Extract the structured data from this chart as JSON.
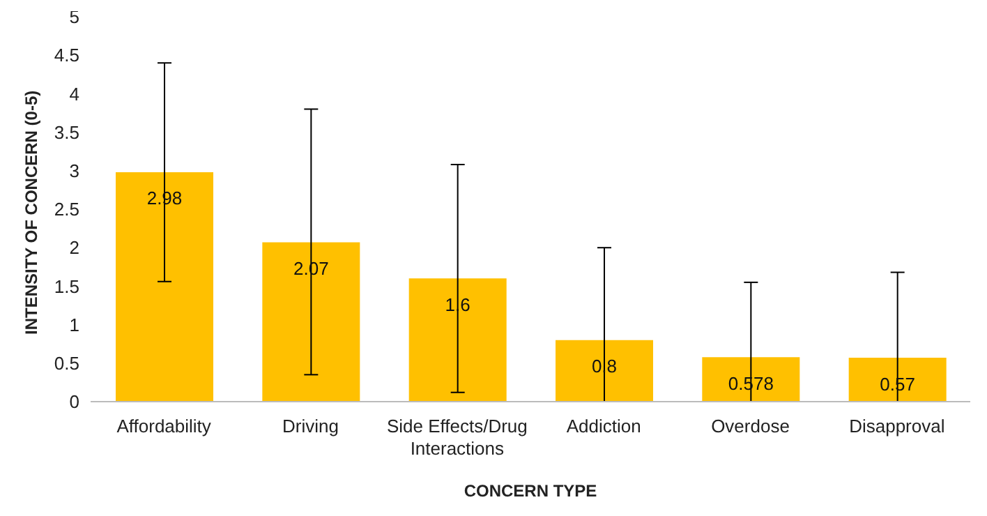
{
  "chart_data": {
    "type": "bar",
    "xlabel": "CONCERN TYPE",
    "ylabel": "INTENSITY OF CONCERN (0-5)",
    "categories": [
      "Affordability",
      "Driving",
      "Side Effects/Drug Interactions",
      "Addiction",
      "Overdose",
      "Disapproval"
    ],
    "values": [
      2.98,
      2.07,
      1.6,
      0.8,
      0.578,
      0.57
    ],
    "errors": [
      [
        1.56,
        4.4
      ],
      [
        0.35,
        3.8
      ],
      [
        0.12,
        3.08
      ],
      [
        0,
        2.0
      ],
      [
        0,
        1.55
      ],
      [
        0,
        1.68
      ]
    ],
    "color": "#ffc000",
    "ylim": [
      0,
      5
    ],
    "yticks": [
      0,
      0.5,
      1,
      1.5,
      2,
      2.5,
      3,
      3.5,
      4,
      4.5,
      5
    ],
    "grid": false,
    "data_labels": true
  }
}
